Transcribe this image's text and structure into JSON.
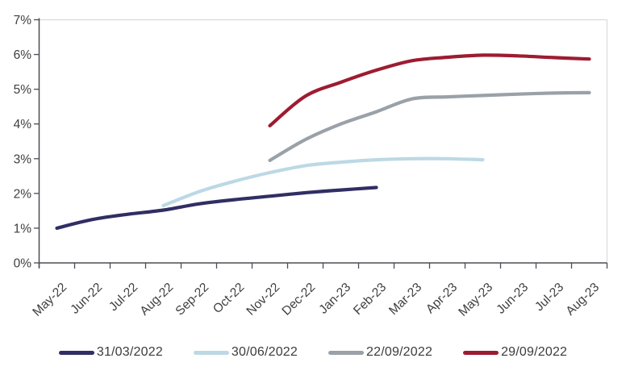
{
  "chart_data": {
    "type": "line",
    "title": "",
    "categories": [
      "May-22",
      "Jun-22",
      "Jul-22",
      "Aug-22",
      "Sep-22",
      "Oct-22",
      "Nov-22",
      "Dec-22",
      "Jan-23",
      "Feb-23",
      "Mar-23",
      "Apr-23",
      "May-23",
      "Jun-23",
      "Jul-23",
      "Aug-23"
    ],
    "y_axis": {
      "min": 0,
      "max": 7,
      "step": 1,
      "tick_suffix": "%",
      "tick_labels": [
        "0%",
        "1%",
        "2%",
        "3%",
        "4%",
        "5%",
        "6%",
        "7%"
      ]
    },
    "series": [
      {
        "name": "31/03/2022",
        "color": "#302e63",
        "values": [
          1.0,
          1.25,
          1.4,
          1.52,
          1.7,
          1.82,
          1.92,
          2.02,
          2.1,
          2.17,
          null,
          null,
          null,
          null,
          null,
          null
        ]
      },
      {
        "name": "30/06/2022",
        "color": "#bcd9e5",
        "values": [
          null,
          null,
          null,
          1.65,
          2.05,
          2.35,
          2.6,
          2.8,
          2.9,
          2.97,
          3.0,
          3.0,
          2.97,
          null,
          null,
          null
        ]
      },
      {
        "name": "22/09/2022",
        "color": "#9aa1a8",
        "values": [
          null,
          null,
          null,
          null,
          null,
          null,
          2.95,
          3.55,
          4.0,
          4.35,
          4.72,
          4.78,
          4.82,
          4.86,
          4.89,
          4.9
        ]
      },
      {
        "name": "29/09/2022",
        "color": "#9d1c31",
        "values": [
          null,
          null,
          null,
          null,
          null,
          null,
          3.95,
          4.8,
          5.2,
          5.55,
          5.82,
          5.92,
          5.98,
          5.96,
          5.91,
          5.87
        ]
      }
    ],
    "legend_position": "bottom",
    "x_label_rotation_deg": -44,
    "grid": "top gridline only",
    "plot_border": "light gray top and right",
    "style": {
      "axis_color": "#4a4d52",
      "grid_color": "#d9d9d9",
      "tick_text_color": "#3f3f3f",
      "background": "#ffffff"
    }
  }
}
